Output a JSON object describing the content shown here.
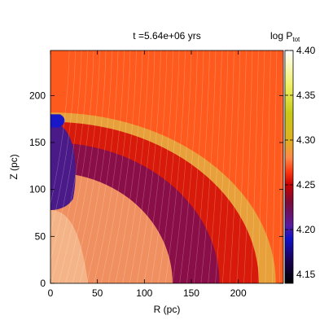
{
  "chart_data": {
    "type": "heatmap",
    "title": "t =5.64e+06 yrs",
    "xlabel": "R (pc)",
    "ylabel": "Z (pc)",
    "xlim": [
      0,
      248
    ],
    "ylim": [
      0,
      248
    ],
    "x_ticks": [
      0,
      50,
      100,
      150,
      200
    ],
    "y_ticks": [
      0,
      50,
      100,
      150,
      200
    ],
    "colorbar": {
      "label_main": "log P",
      "label_sub": "tot",
      "range": [
        4.14,
        4.4
      ],
      "ticks": [
        4.15,
        4.2,
        4.25,
        4.3,
        4.35,
        4.4
      ],
      "stops": [
        {
          "value": 4.14,
          "color": "#000000"
        },
        {
          "value": 4.165,
          "color": "#1a0050"
        },
        {
          "value": 4.19,
          "color": "#1010c8"
        },
        {
          "value": 4.205,
          "color": "#5a1a9e"
        },
        {
          "value": 4.23,
          "color": "#7a0a3a"
        },
        {
          "value": 4.25,
          "color": "#c80000"
        },
        {
          "value": 4.265,
          "color": "#ff3a10"
        },
        {
          "value": 4.28,
          "color": "#ff8848"
        },
        {
          "value": 4.3,
          "color": "#e0b020"
        },
        {
          "value": 4.33,
          "color": "#c8c818"
        },
        {
          "value": 4.36,
          "color": "#f0f060"
        },
        {
          "value": 4.4,
          "color": "#ffffff"
        }
      ]
    },
    "field_description": {
      "background_value": 4.27,
      "shell_outer_radius_pc": 240,
      "shell_inner_radius_pc": 100,
      "cavity_value": 4.21,
      "shell_rim_value": 4.3,
      "shell_core_value": 4.24
    }
  }
}
